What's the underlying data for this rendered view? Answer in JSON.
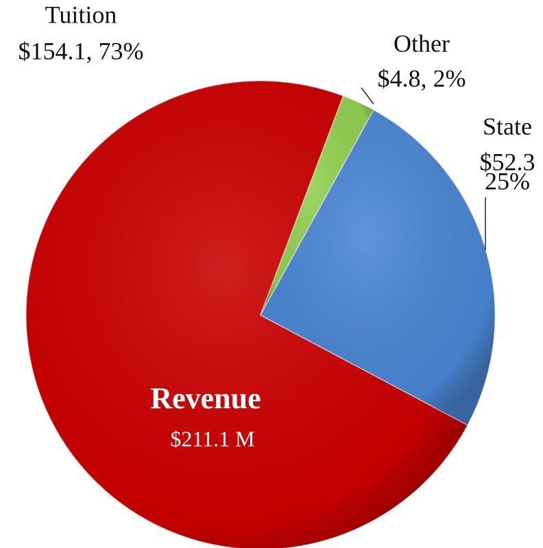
{
  "chart_data": {
    "type": "pie",
    "categories": [
      "Tuition",
      "Other",
      "State"
    ],
    "values": [
      154.1,
      4.8,
      52.3
    ],
    "value_labels": [
      [
        "$154.1, 73%"
      ],
      [
        "$4.8, 2%"
      ],
      [
        "$52.3",
        "25%"
      ]
    ],
    "colors": [
      "#cc0000",
      "#92d050",
      "#4a86d4"
    ],
    "center_title": "Revenue",
    "center_subtitle": "$211.1 M"
  }
}
